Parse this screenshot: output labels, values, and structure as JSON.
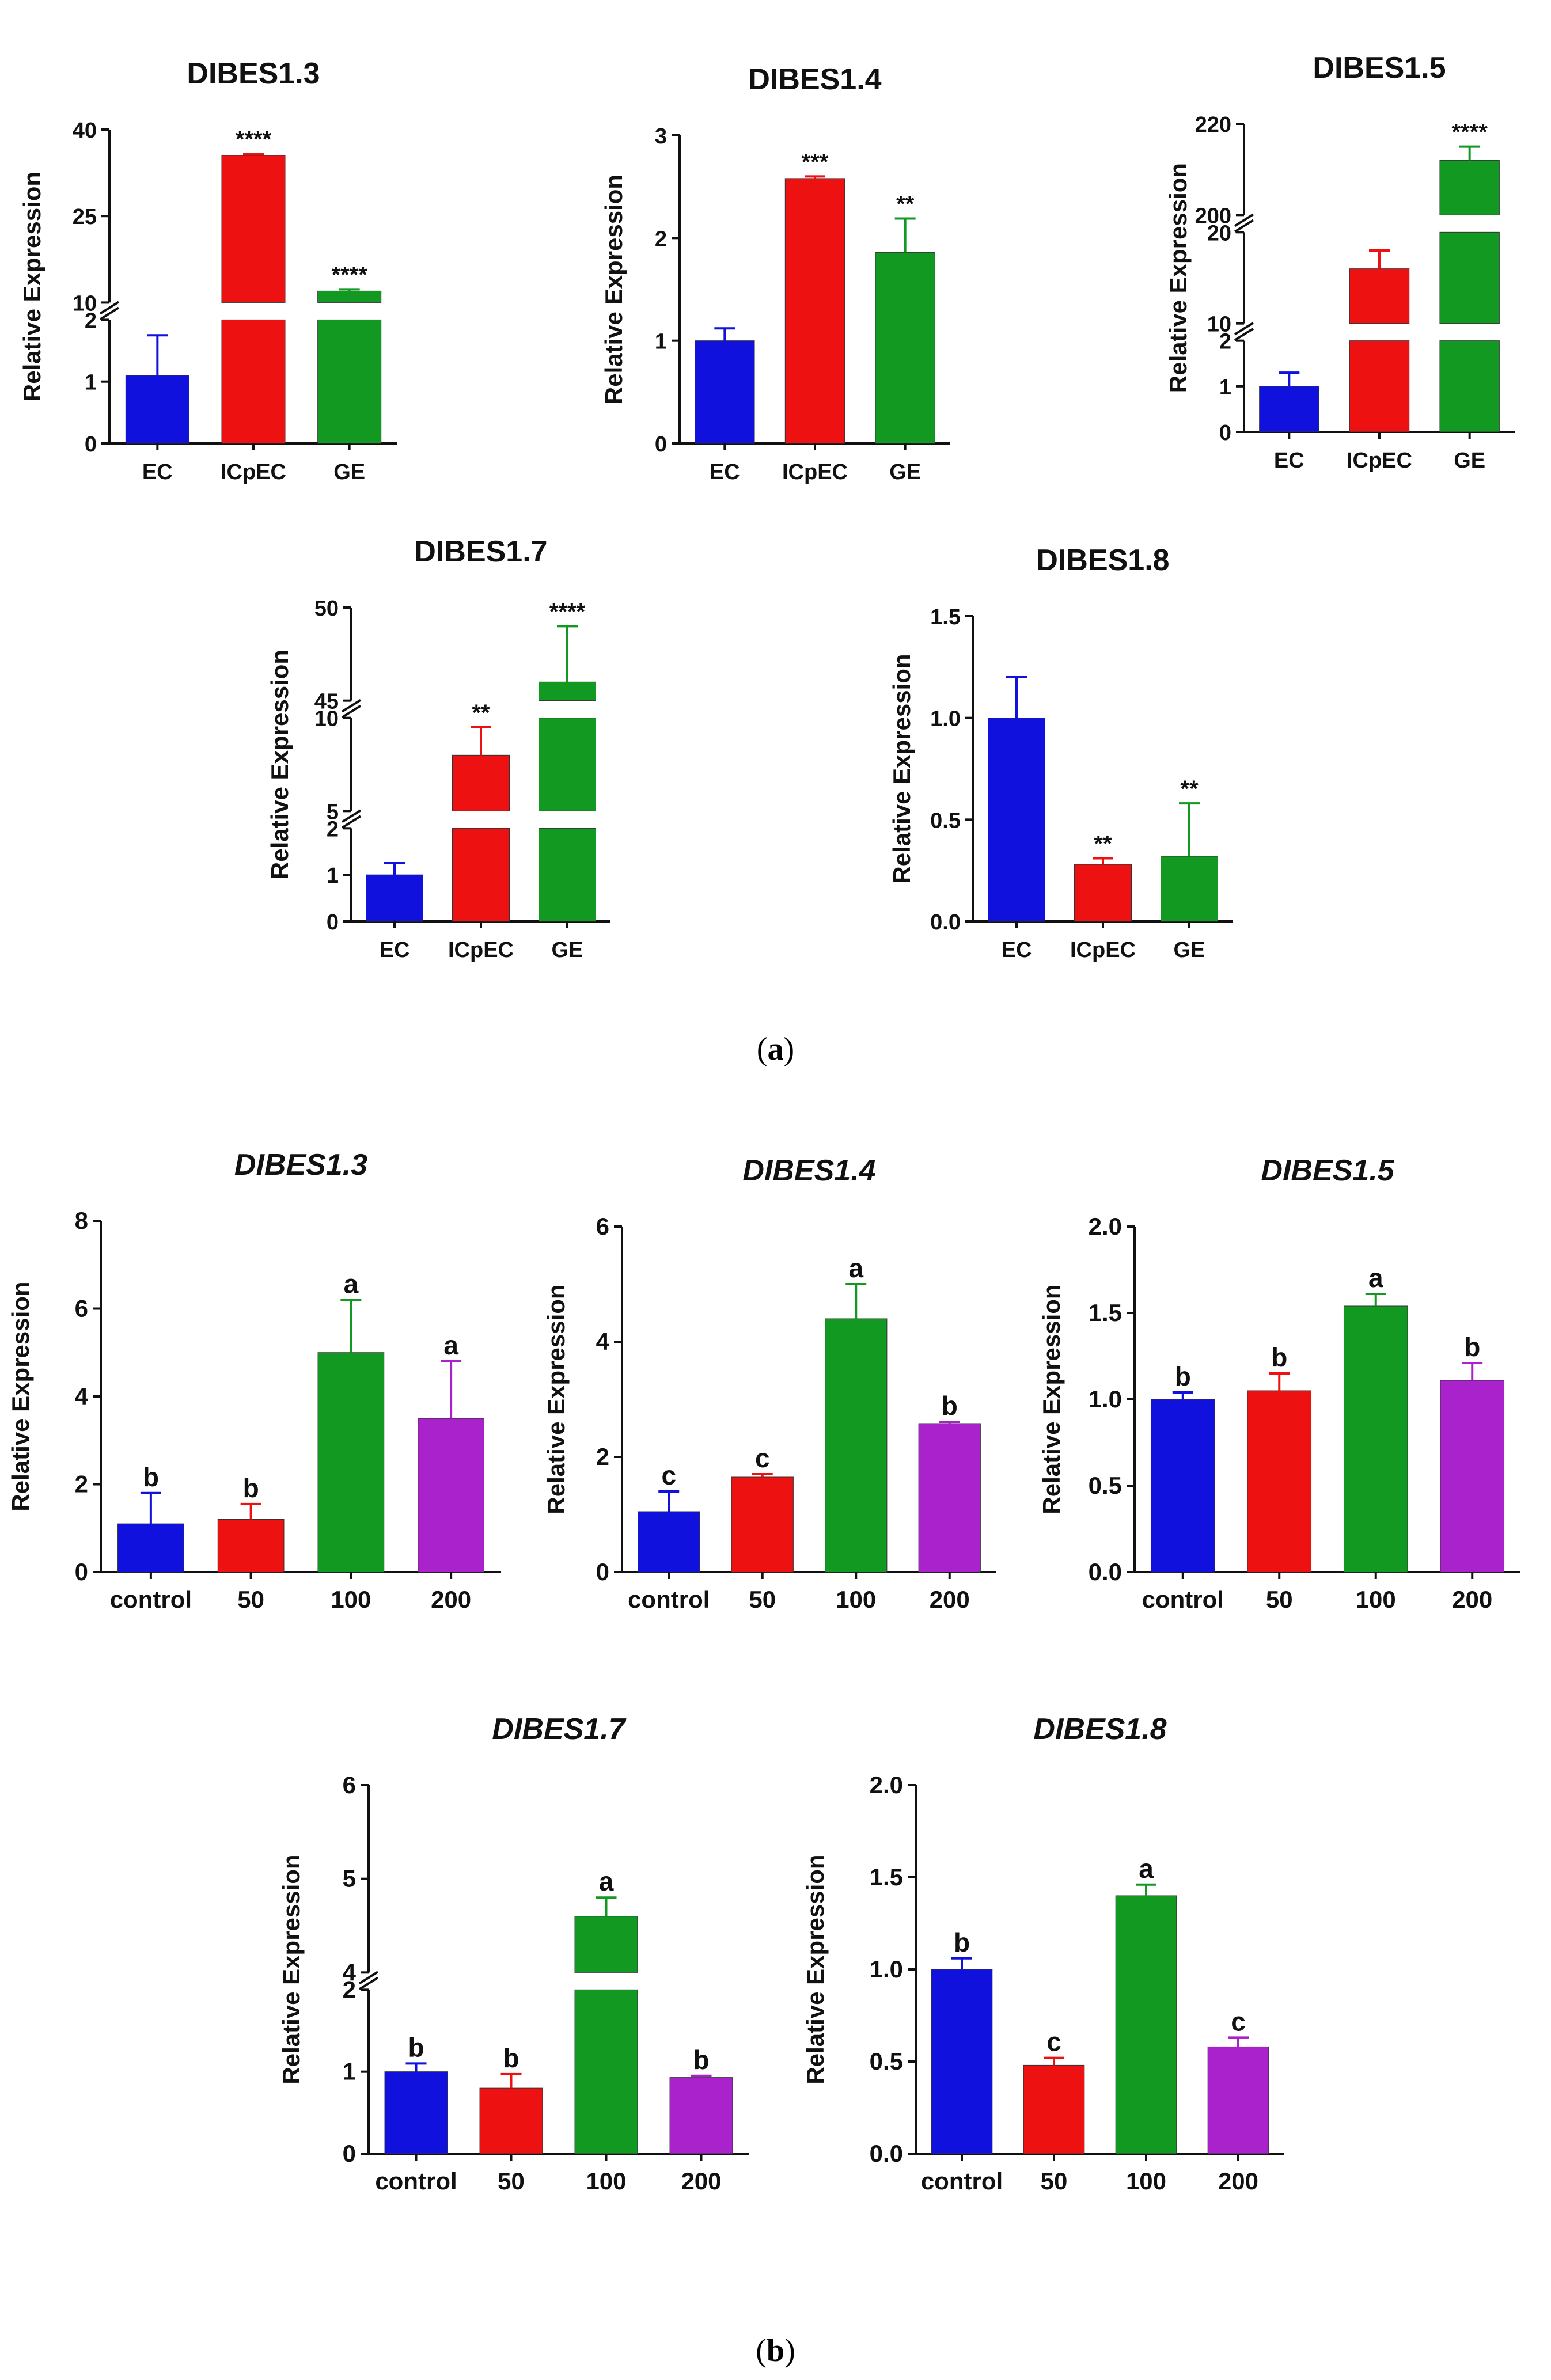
{
  "figure": {
    "panel_a_label": {
      "open": "(",
      "letter": "a",
      "close": ")"
    },
    "panel_b_label": {
      "open": "(",
      "letter": "b",
      "close": ")"
    }
  },
  "colors": {
    "blue": "#1111dd",
    "red": "#ee1111",
    "green": "#119922",
    "purple": "#aa22cc"
  },
  "chart_data": [
    {
      "id": "a1",
      "type": "bar",
      "title": "DIBES1.3",
      "title_italic": false,
      "ylabel": "Relative Expression",
      "categories": [
        "EC",
        "ICpEC",
        "GE"
      ],
      "values": [
        1.1,
        35.5,
        12.0
      ],
      "errors": [
        0.65,
        0.3,
        0.3
      ],
      "annotations": [
        "",
        "****",
        "****"
      ],
      "bar_colors": [
        "blue",
        "red",
        "green"
      ],
      "segments": [
        {
          "range": [
            0,
            2
          ],
          "ticks": [
            "0",
            "1",
            "2"
          ]
        },
        {
          "range": [
            10,
            40
          ],
          "ticks": [
            "10",
            "25",
            "40"
          ]
        }
      ]
    },
    {
      "id": "a2",
      "type": "bar",
      "title": "DIBES1.4",
      "title_italic": false,
      "ylabel": "Relative Expression",
      "categories": [
        "EC",
        "ICpEC",
        "GE"
      ],
      "values": [
        1.0,
        2.58,
        1.86
      ],
      "errors": [
        0.12,
        0.02,
        0.33
      ],
      "annotations": [
        "",
        "***",
        "**"
      ],
      "bar_colors": [
        "blue",
        "red",
        "green"
      ],
      "segments": [
        {
          "range": [
            0,
            3
          ],
          "ticks": [
            "0",
            "1",
            "2",
            "3"
          ]
        }
      ]
    },
    {
      "id": "a3",
      "type": "bar",
      "title": "DIBES1.5",
      "title_italic": false,
      "ylabel": "Relative Expression",
      "categories": [
        "EC",
        "ICpEC",
        "GE"
      ],
      "values": [
        1.0,
        16.0,
        212.0
      ],
      "errors": [
        0.3,
        2.0,
        3.0
      ],
      "annotations": [
        "",
        "",
        "****"
      ],
      "bar_colors": [
        "blue",
        "red",
        "green"
      ],
      "segments": [
        {
          "range": [
            0,
            2
          ],
          "ticks": [
            "0",
            "1",
            "2"
          ]
        },
        {
          "range": [
            10,
            20
          ],
          "ticks": [
            "10",
            "20"
          ]
        },
        {
          "range": [
            200,
            220
          ],
          "ticks": [
            "200",
            "220"
          ]
        }
      ]
    },
    {
      "id": "a4",
      "type": "bar",
      "title": "DIBES1.7",
      "title_italic": false,
      "ylabel": "Relative Expression",
      "categories": [
        "EC",
        "ICpEC",
        "GE"
      ],
      "values": [
        1.0,
        8.0,
        46.0
      ],
      "errors": [
        0.25,
        1.5,
        3.0
      ],
      "annotations": [
        "",
        "**",
        "****"
      ],
      "bar_colors": [
        "blue",
        "red",
        "green"
      ],
      "segments": [
        {
          "range": [
            0,
            2
          ],
          "ticks": [
            "0",
            "1",
            "2"
          ]
        },
        {
          "range": [
            5,
            10
          ],
          "ticks": [
            "5",
            "10"
          ]
        },
        {
          "range": [
            45,
            50
          ],
          "ticks": [
            "45",
            "50"
          ]
        }
      ]
    },
    {
      "id": "a5",
      "type": "bar",
      "title": "DIBES1.8",
      "title_italic": false,
      "ylabel": "Relative Expression",
      "categories": [
        "EC",
        "ICpEC",
        "GE"
      ],
      "values": [
        1.0,
        0.28,
        0.32
      ],
      "errors": [
        0.2,
        0.03,
        0.26
      ],
      "annotations": [
        "",
        "**",
        "**"
      ],
      "bar_colors": [
        "blue",
        "red",
        "green"
      ],
      "segments": [
        {
          "range": [
            0,
            1.5
          ],
          "ticks": [
            "0.0",
            "0.5",
            "1.0",
            "1.5"
          ]
        }
      ]
    },
    {
      "id": "b1",
      "type": "bar",
      "title": "DIBES1.3",
      "title_italic": true,
      "ylabel": "Relative Expression",
      "categories": [
        "control",
        "50",
        "100",
        "200"
      ],
      "values": [
        1.1,
        1.2,
        5.0,
        3.5
      ],
      "errors": [
        0.7,
        0.35,
        1.2,
        1.3
      ],
      "annotations": [
        "b",
        "b",
        "a",
        "a"
      ],
      "bar_colors": [
        "blue",
        "red",
        "green",
        "purple"
      ],
      "segments": [
        {
          "range": [
            0,
            8
          ],
          "ticks": [
            "0",
            "2",
            "4",
            "6",
            "8"
          ]
        }
      ]
    },
    {
      "id": "b2",
      "type": "bar",
      "title": "DIBES1.4",
      "title_italic": true,
      "ylabel": "Relative Expression",
      "categories": [
        "control",
        "50",
        "100",
        "200"
      ],
      "values": [
        1.05,
        1.65,
        4.4,
        2.58
      ],
      "errors": [
        0.35,
        0.05,
        0.6,
        0.03
      ],
      "annotations": [
        "c",
        "c",
        "a",
        "b"
      ],
      "bar_colors": [
        "blue",
        "red",
        "green",
        "purple"
      ],
      "segments": [
        {
          "range": [
            0,
            6
          ],
          "ticks": [
            "0",
            "2",
            "4",
            "6"
          ]
        }
      ]
    },
    {
      "id": "b3",
      "type": "bar",
      "title": "DIBES1.5",
      "title_italic": true,
      "ylabel": "Relative Expression",
      "categories": [
        "control",
        "50",
        "100",
        "200"
      ],
      "values": [
        1.0,
        1.05,
        1.54,
        1.11
      ],
      "errors": [
        0.04,
        0.1,
        0.07,
        0.1
      ],
      "annotations": [
        "b",
        "b",
        "a",
        "b"
      ],
      "bar_colors": [
        "blue",
        "red",
        "green",
        "purple"
      ],
      "segments": [
        {
          "range": [
            0,
            2
          ],
          "ticks": [
            "0.0",
            "0.5",
            "1.0",
            "1.5",
            "2.0"
          ]
        }
      ]
    },
    {
      "id": "b4",
      "type": "bar",
      "title": "DIBES1.7",
      "title_italic": true,
      "ylabel": "Relative Expression",
      "categories": [
        "control",
        "50",
        "100",
        "200"
      ],
      "values": [
        1.0,
        0.8,
        4.6,
        0.93
      ],
      "errors": [
        0.1,
        0.17,
        0.2,
        0.02
      ],
      "annotations": [
        "b",
        "b",
        "a",
        "b"
      ],
      "bar_colors": [
        "blue",
        "red",
        "green",
        "purple"
      ],
      "segments": [
        {
          "range": [
            0,
            2
          ],
          "ticks": [
            "0",
            "1",
            "2"
          ]
        },
        {
          "range": [
            4,
            6
          ],
          "ticks": [
            "4",
            "5",
            "6"
          ]
        }
      ]
    },
    {
      "id": "b5",
      "type": "bar",
      "title": "DIBES1.8",
      "title_italic": true,
      "ylabel": "Relative Expression",
      "categories": [
        "control",
        "50",
        "100",
        "200"
      ],
      "values": [
        1.0,
        0.48,
        1.4,
        0.58
      ],
      "errors": [
        0.06,
        0.04,
        0.06,
        0.05
      ],
      "annotations": [
        "b",
        "c",
        "a",
        "c"
      ],
      "bar_colors": [
        "blue",
        "red",
        "green",
        "purple"
      ],
      "segments": [
        {
          "range": [
            0,
            2
          ],
          "ticks": [
            "0.0",
            "0.5",
            "1.0",
            "1.5",
            "2.0"
          ]
        }
      ]
    }
  ]
}
